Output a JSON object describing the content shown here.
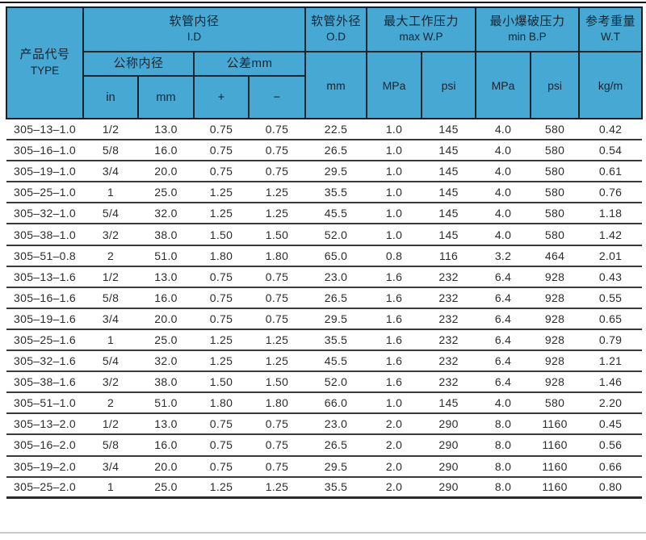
{
  "colors": {
    "header_bg": "#48a8d4",
    "header_border": "#15232c",
    "header_text": "#13242e",
    "body_text": "#2c2c2c",
    "row_separator": "#3a3a3a",
    "top_rule": "#161616",
    "bottom_rule": "#c9c9c9"
  },
  "table": {
    "header": {
      "type": {
        "zh": "产品代号",
        "en": "TYPE"
      },
      "id": {
        "zh": "软管内径",
        "en": "I.D"
      },
      "nominal": {
        "zh": "公称内径"
      },
      "tolerance": {
        "zh": "公差mm"
      },
      "units": {
        "in": "in",
        "mm": "mm",
        "plus": "+",
        "minus": "−"
      },
      "od": {
        "zh": "软管外径",
        "en": "O.D",
        "unit": "mm"
      },
      "wp": {
        "zh": "最大工作压力",
        "en": "max W.P",
        "mpa": "MPa",
        "psi": "psi"
      },
      "bp": {
        "zh": "最小爆破压力",
        "en": "min B.P",
        "mpa": "MPa",
        "psi": "psi"
      },
      "wt": {
        "zh": "参考重量",
        "en": "W.T",
        "unit": "kg/m"
      }
    },
    "column_keys": [
      "type",
      "id-in",
      "id-mm",
      "tol-plus",
      "tol-minus",
      "od-mm",
      "wp-mpa",
      "wp-psi",
      "bp-mpa",
      "bp-psi",
      "weight"
    ],
    "rows": [
      [
        "305–13–1.0",
        "1/2",
        "13.0",
        "0.75",
        "0.75",
        "22.5",
        "1.0",
        "145",
        "4.0",
        "580",
        "0.42"
      ],
      [
        "305–16–1.0",
        "5/8",
        "16.0",
        "0.75",
        "0.75",
        "26.5",
        "1.0",
        "145",
        "4.0",
        "580",
        "0.54"
      ],
      [
        "305–19–1.0",
        "3/4",
        "20.0",
        "0.75",
        "0.75",
        "29.5",
        "1.0",
        "145",
        "4.0",
        "580",
        "0.61"
      ],
      [
        "305–25–1.0",
        "1",
        "25.0",
        "1.25",
        "1.25",
        "35.5",
        "1.0",
        "145",
        "4.0",
        "580",
        "0.76"
      ],
      [
        "305–32–1.0",
        "5/4",
        "32.0",
        "1.25",
        "1.25",
        "45.5",
        "1.0",
        "145",
        "4.0",
        "580",
        "1.18"
      ],
      [
        "305–38–1.0",
        "3/2",
        "38.0",
        "1.50",
        "1.50",
        "52.0",
        "1.0",
        "145",
        "4.0",
        "580",
        "1.42"
      ],
      [
        "305–51–0.8",
        "2",
        "51.0",
        "1.80",
        "1.80",
        "65.0",
        "0.8",
        "116",
        "3.2",
        "464",
        "2.01"
      ],
      [
        "305–13–1.6",
        "1/2",
        "13.0",
        "0.75",
        "0.75",
        "23.0",
        "1.6",
        "232",
        "6.4",
        "928",
        "0.43"
      ],
      [
        "305–16–1.6",
        "5/8",
        "16.0",
        "0.75",
        "0.75",
        "26.5",
        "1.6",
        "232",
        "6.4",
        "928",
        "0.55"
      ],
      [
        "305–19–1.6",
        "3/4",
        "20.0",
        "0.75",
        "0.75",
        "29.5",
        "1.6",
        "232",
        "6.4",
        "928",
        "0.65"
      ],
      [
        "305–25–1.6",
        "1",
        "25.0",
        "1.25",
        "1.25",
        "35.5",
        "1.6",
        "232",
        "6.4",
        "928",
        "0.79"
      ],
      [
        "305–32–1.6",
        "5/4",
        "32.0",
        "1.25",
        "1.25",
        "45.5",
        "1.6",
        "232",
        "6.4",
        "928",
        "1.21"
      ],
      [
        "305–38–1.6",
        "3/2",
        "38.0",
        "1.50",
        "1.50",
        "52.0",
        "1.6",
        "232",
        "6.4",
        "928",
        "1.46"
      ],
      [
        "305–51–1.0",
        "2",
        "51.0",
        "1.80",
        "1.80",
        "66.0",
        "1.0",
        "145",
        "4.0",
        "580",
        "2.20"
      ],
      [
        "305–13–2.0",
        "1/2",
        "13.0",
        "0.75",
        "0.75",
        "23.0",
        "2.0",
        "290",
        "8.0",
        "1160",
        "0.45"
      ],
      [
        "305–16–2.0",
        "5/8",
        "16.0",
        "0.75",
        "0.75",
        "26.5",
        "2.0",
        "290",
        "8.0",
        "1160",
        "0.56"
      ],
      [
        "305–19–2.0",
        "3/4",
        "20.0",
        "0.75",
        "0.75",
        "29.5",
        "2.0",
        "290",
        "8.0",
        "1160",
        "0.66"
      ],
      [
        "305–25–2.0",
        "1",
        "25.0",
        "1.25",
        "1.25",
        "35.5",
        "2.0",
        "290",
        "8.0",
        "1160",
        "0.80"
      ]
    ]
  }
}
